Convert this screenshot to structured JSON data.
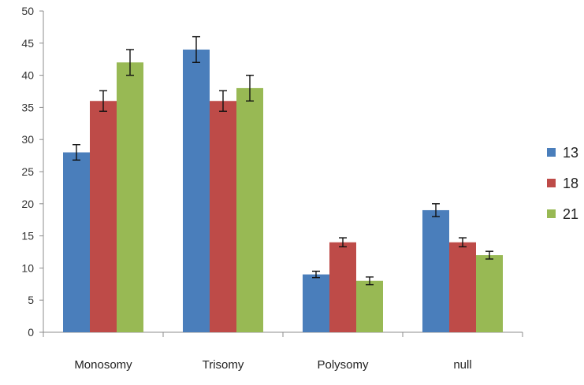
{
  "chart_data": {
    "type": "bar",
    "categories": [
      "Monosomy",
      "Trisomy",
      "Polysomy",
      "null"
    ],
    "series": [
      {
        "name": "13",
        "color": "#4a7ebb",
        "values": [
          28,
          44,
          9,
          19
        ],
        "errors": [
          1.2,
          2.0,
          0.5,
          1.0
        ]
      },
      {
        "name": "18",
        "color": "#be4b48",
        "values": [
          36,
          36,
          14,
          14
        ],
        "errors": [
          1.6,
          1.6,
          0.7,
          0.7
        ]
      },
      {
        "name": "21",
        "color": "#98b954",
        "values": [
          42,
          38,
          8,
          12
        ],
        "errors": [
          2.0,
          2.0,
          0.6,
          0.6
        ]
      }
    ],
    "yticks": [
      "0",
      "5",
      "10",
      "15",
      "20",
      "25",
      "30",
      "35",
      "40",
      "45",
      "50"
    ],
    "ylim": [
      0,
      50
    ],
    "grid": false,
    "legend_position": "right",
    "title": "",
    "xlabel": "",
    "ylabel": ""
  }
}
